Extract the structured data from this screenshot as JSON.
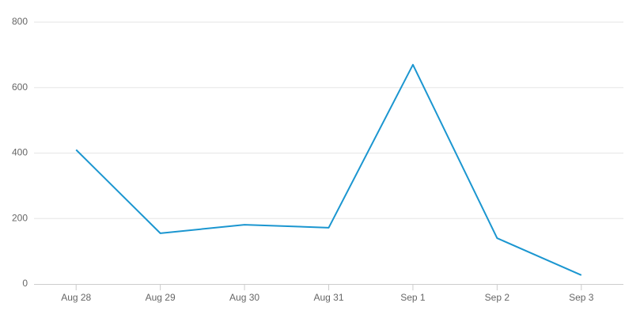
{
  "chart_data": {
    "type": "line",
    "categories": [
      "Aug 28",
      "Aug 29",
      "Aug 30",
      "Aug 31",
      "Sep 1",
      "Sep 2",
      "Sep 3"
    ],
    "values": [
      410,
      155,
      181,
      172,
      670,
      140,
      27
    ],
    "color": "#1b96d0",
    "ylim": [
      0,
      800
    ],
    "yticks": [
      0,
      200,
      400,
      600,
      800
    ],
    "grid": true
  }
}
